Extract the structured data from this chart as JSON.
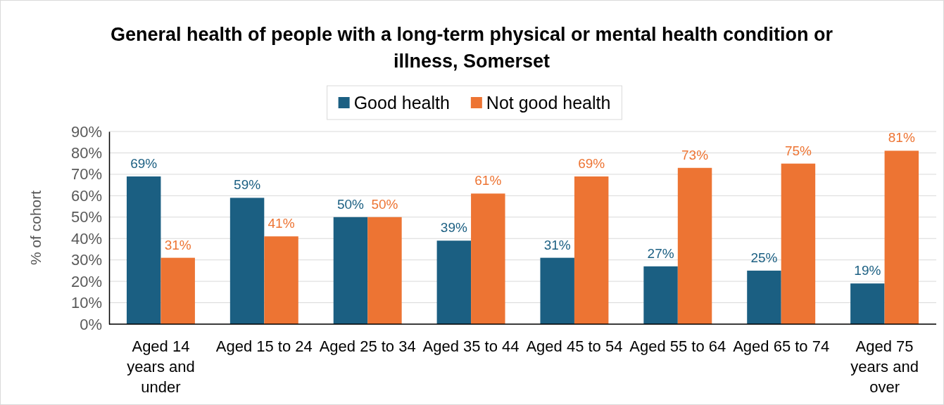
{
  "chart_data": {
    "type": "bar",
    "title": "General health of people with a long-term physical or mental health condition or illness, Somerset",
    "ylabel": "% of cohort",
    "categories": [
      "Aged 14 years and under",
      "Aged 15 to 24",
      "Aged 25 to 34",
      "Aged 35 to 44",
      "Aged 45 to 54",
      "Aged 55 to 64",
      "Aged 65 to 74",
      "Aged 75 years and over"
    ],
    "series": [
      {
        "name": "Good health",
        "color": "#1b5f82",
        "values": [
          69,
          59,
          50,
          39,
          31,
          27,
          25,
          19
        ],
        "value_labels": [
          "69%",
          "59%",
          "50%",
          "39%",
          "31%",
          "27%",
          "25%",
          "19%"
        ]
      },
      {
        "name": "Not good health",
        "color": "#ed7433",
        "values": [
          31,
          41,
          50,
          61,
          69,
          73,
          75,
          81
        ],
        "value_labels": [
          "31%",
          "41%",
          "50%",
          "61%",
          "69%",
          "73%",
          "75%",
          "81%"
        ]
      }
    ],
    "ylim": [
      0,
      90
    ],
    "yticks": [
      {
        "value": 0,
        "label": "0%"
      },
      {
        "value": 10,
        "label": "10%"
      },
      {
        "value": 20,
        "label": "20%"
      },
      {
        "value": 30,
        "label": "30%"
      },
      {
        "value": 40,
        "label": "40%"
      },
      {
        "value": 50,
        "label": "50%"
      },
      {
        "value": 60,
        "label": "60%"
      },
      {
        "value": 70,
        "label": "70%"
      },
      {
        "value": 80,
        "label": "80%"
      },
      {
        "value": 90,
        "label": "90%"
      }
    ],
    "grid": "y",
    "legend": "top"
  }
}
